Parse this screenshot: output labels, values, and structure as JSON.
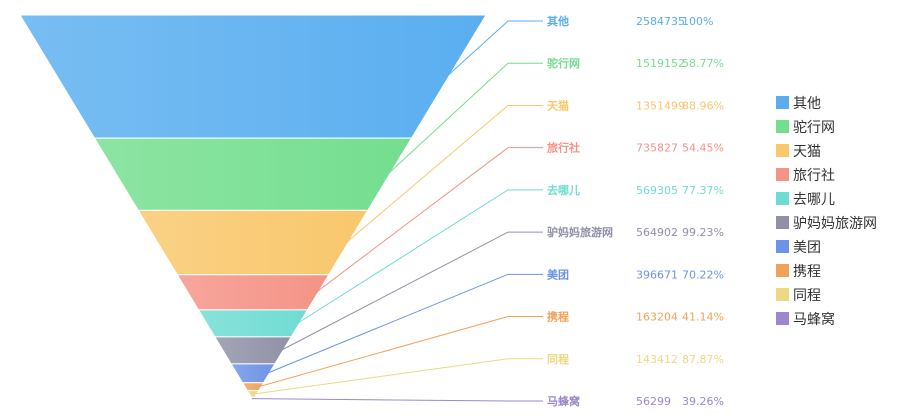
{
  "chart_data": {
    "type": "funnel",
    "series": [
      {
        "name": "其他",
        "value": 2584735,
        "percent": "100%",
        "color": "#5aaef0"
      },
      {
        "name": "驼行网",
        "value": 1519152,
        "percent": "58.77%",
        "color": "#74de8f"
      },
      {
        "name": "天猫",
        "value": 1351499,
        "percent": "88.96%",
        "color": "#f9c76c"
      },
      {
        "name": "旅行社",
        "value": 735827,
        "percent": "54.45%",
        "color": "#f59386"
      },
      {
        "name": "去哪儿",
        "value": 569305,
        "percent": "77.37%",
        "color": "#6fdcd3"
      },
      {
        "name": "驴妈妈旅游网",
        "value": 564902,
        "percent": "99.23%",
        "color": "#9091a6"
      },
      {
        "name": "美团",
        "value": 396671,
        "percent": "70.22%",
        "color": "#6d93e6"
      },
      {
        "name": "携程",
        "value": 163204,
        "percent": "41.14%",
        "color": "#f1a25a"
      },
      {
        "name": "同程",
        "value": 143412,
        "percent": "87.87%",
        "color": "#ecd982"
      },
      {
        "name": "马蜂窝",
        "value": 56299,
        "percent": "39.26%",
        "color": "#9c86cf"
      }
    ],
    "legend_position": "right"
  }
}
